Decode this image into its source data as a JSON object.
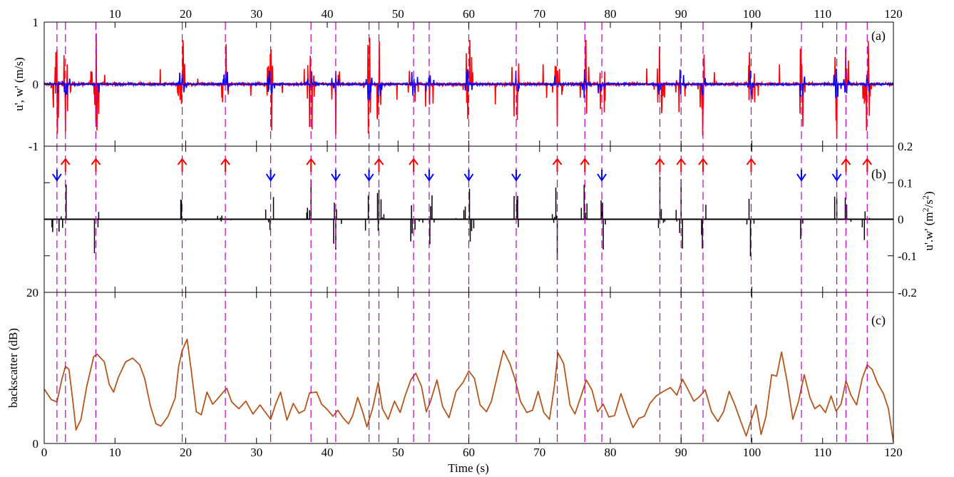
{
  "chart_data": {
    "type": "line",
    "panels": [
      {
        "id": "a",
        "panel_label": "(a)",
        "ylabel": "u', w' (m/s)",
        "ylim": [
          -1,
          1
        ],
        "yticks": [
          -1,
          0,
          1
        ],
        "ytick_labels": [
          "-1",
          "0",
          "1"
        ],
        "series": [
          {
            "color": "#ff0000",
            "key": "u"
          },
          {
            "color": "#0000ff",
            "key": "w"
          }
        ]
      },
      {
        "id": "b",
        "panel_label": "(b)",
        "ylabel": "u'.w' (m²/s²)",
        "ylabel_parts": {
          "pre": "u'.w' (m",
          "sup1": "2",
          "mid": "/s",
          "sup2": "2",
          "post": ")"
        },
        "ylim": [
          -0.2,
          0.2
        ],
        "yticks": [
          -0.2,
          -0.1,
          0,
          0.1,
          0.2
        ],
        "ytick_labels": [
          "-0.2",
          "-0.1",
          "0",
          "0.1",
          "0.2"
        ],
        "series": [
          {
            "color": "#000000",
            "key": "uw"
          }
        ]
      },
      {
        "id": "c",
        "panel_label": "(c)",
        "ylabel": "backscatter (dB)",
        "ylim": [
          0,
          20
        ],
        "yticks": [
          0,
          20
        ],
        "ytick_labels": [
          "0",
          "20"
        ],
        "series": [
          {
            "color": "#b5561b",
            "key": "backscatter"
          }
        ]
      }
    ],
    "xlabel": "Time (s)",
    "xlim": [
      0,
      120
    ],
    "xticks": [
      10,
      20,
      30,
      40,
      50,
      60,
      70,
      80,
      90,
      100,
      110,
      120
    ],
    "xtick_labels_top": [
      "10",
      "20",
      "30",
      "40",
      "50",
      "60",
      "70",
      "80",
      "90",
      "100",
      "110",
      "120"
    ],
    "xtick_labels_bottom": [
      "0",
      "10",
      "20",
      "30",
      "40",
      "50",
      "60",
      "70",
      "80",
      "90",
      "100",
      "110",
      "120"
    ],
    "event_lines": [
      1.8,
      3.0,
      7.3,
      19.5,
      25.6,
      32.0,
      37.7,
      41.2,
      45.9,
      47.3,
      52.2,
      54.4,
      60.0,
      66.7,
      72.5,
      76.4,
      78.8,
      87.0,
      90.0,
      93.1,
      99.9,
      107.0,
      112.0,
      113.3,
      116.3
    ],
    "arrows_up": [
      3.0,
      7.3,
      19.5,
      25.6,
      37.7,
      47.3,
      52.2,
      72.5,
      76.4,
      87.0,
      90.0,
      93.1,
      99.9,
      113.3,
      116.3
    ],
    "arrows_down": [
      1.8,
      32.0,
      41.2,
      45.9,
      54.4,
      60.0,
      66.7,
      78.8,
      107.0,
      112.0
    ],
    "backscatter_db": [
      [
        0.0,
        7.2
      ],
      [
        1.0,
        5.8
      ],
      [
        1.8,
        5.5
      ],
      [
        2.5,
        8.5
      ],
      [
        3.0,
        10.2
      ],
      [
        3.5,
        9.8
      ],
      [
        4.0,
        6.0
      ],
      [
        4.5,
        1.8
      ],
      [
        5.2,
        3.2
      ],
      [
        6.0,
        7.5
      ],
      [
        7.0,
        11.5
      ],
      [
        7.5,
        11.8
      ],
      [
        8.5,
        10.8
      ],
      [
        9.2,
        7.8
      ],
      [
        9.8,
        6.8
      ],
      [
        10.5,
        8.8
      ],
      [
        11.5,
        10.8
      ],
      [
        12.5,
        11.3
      ],
      [
        13.5,
        10.4
      ],
      [
        14.2,
        8.6
      ],
      [
        15.0,
        5.0
      ],
      [
        15.8,
        2.6
      ],
      [
        16.5,
        2.3
      ],
      [
        17.5,
        3.6
      ],
      [
        18.5,
        6.0
      ],
      [
        19.0,
        10.2
      ],
      [
        19.5,
        12.3
      ],
      [
        20.2,
        13.8
      ],
      [
        20.8,
        9.5
      ],
      [
        21.5,
        4.2
      ],
      [
        22.2,
        3.8
      ],
      [
        23.0,
        6.8
      ],
      [
        23.8,
        5.2
      ],
      [
        24.5,
        5.9
      ],
      [
        25.3,
        6.8
      ],
      [
        25.8,
        7.3
      ],
      [
        26.5,
        5.5
      ],
      [
        27.5,
        4.6
      ],
      [
        28.5,
        5.6
      ],
      [
        29.5,
        3.9
      ],
      [
        30.5,
        5.1
      ],
      [
        31.2,
        4.2
      ],
      [
        32.0,
        3.2
      ],
      [
        32.7,
        5.2
      ],
      [
        33.4,
        6.8
      ],
      [
        34.3,
        3.1
      ],
      [
        35.2,
        5.3
      ],
      [
        36.0,
        4.0
      ],
      [
        36.8,
        4.4
      ],
      [
        37.5,
        6.7
      ],
      [
        38.5,
        6.8
      ],
      [
        39.2,
        5.2
      ],
      [
        40.0,
        4.5
      ],
      [
        40.8,
        3.6
      ],
      [
        41.5,
        4.4
      ],
      [
        42.3,
        3.3
      ],
      [
        43.0,
        2.6
      ],
      [
        43.6,
        3.7
      ],
      [
        44.3,
        6.1
      ],
      [
        45.0,
        4.2
      ],
      [
        45.6,
        2.2
      ],
      [
        46.4,
        4.6
      ],
      [
        47.2,
        8.1
      ],
      [
        47.8,
        4.6
      ],
      [
        48.6,
        3.2
      ],
      [
        49.5,
        5.6
      ],
      [
        50.3,
        4.1
      ],
      [
        51.0,
        6.3
      ],
      [
        51.8,
        8.4
      ],
      [
        52.5,
        9.3
      ],
      [
        53.3,
        7.6
      ],
      [
        54.0,
        4.2
      ],
      [
        54.6,
        5.6
      ],
      [
        55.5,
        8.4
      ],
      [
        56.3,
        4.9
      ],
      [
        57.2,
        3.4
      ],
      [
        58.2,
        6.9
      ],
      [
        59.2,
        8.1
      ],
      [
        60.0,
        9.6
      ],
      [
        60.8,
        8.6
      ],
      [
        61.6,
        5.1
      ],
      [
        62.5,
        4.2
      ],
      [
        63.2,
        5.6
      ],
      [
        64.2,
        9.6
      ],
      [
        64.9,
        12.3
      ],
      [
        65.8,
        10.6
      ],
      [
        66.5,
        8.6
      ],
      [
        67.3,
        5.6
      ],
      [
        68.2,
        4.1
      ],
      [
        69.0,
        4.4
      ],
      [
        69.8,
        6.9
      ],
      [
        70.6,
        4.1
      ],
      [
        71.4,
        3.2
      ],
      [
        72.1,
        7.6
      ],
      [
        72.6,
        12.0
      ],
      [
        73.4,
        10.6
      ],
      [
        74.3,
        5.1
      ],
      [
        75.0,
        3.9
      ],
      [
        75.8,
        6.1
      ],
      [
        76.6,
        8.4
      ],
      [
        77.4,
        7.1
      ],
      [
        78.2,
        4.2
      ],
      [
        79.0,
        5.2
      ],
      [
        79.8,
        3.5
      ],
      [
        80.6,
        3.7
      ],
      [
        81.5,
        6.6
      ],
      [
        82.4,
        4.1
      ],
      [
        83.2,
        2.1
      ],
      [
        84.0,
        3.3
      ],
      [
        84.8,
        3.6
      ],
      [
        85.6,
        5.3
      ],
      [
        86.5,
        6.3
      ],
      [
        87.5,
        6.9
      ],
      [
        88.5,
        7.4
      ],
      [
        89.4,
        6.4
      ],
      [
        90.2,
        8.5
      ],
      [
        91.0,
        7.1
      ],
      [
        91.8,
        5.6
      ],
      [
        92.6,
        6.2
      ],
      [
        93.4,
        7.1
      ],
      [
        94.3,
        4.2
      ],
      [
        95.2,
        2.9
      ],
      [
        96.0,
        4.2
      ],
      [
        96.8,
        6.9
      ],
      [
        97.6,
        5.1
      ],
      [
        98.4,
        3.0
      ],
      [
        99.2,
        1.0
      ],
      [
        99.9,
        3.1
      ],
      [
        100.6,
        5.1
      ],
      [
        101.3,
        1.2
      ],
      [
        102.0,
        3.6
      ],
      [
        102.8,
        9.1
      ],
      [
        103.5,
        8.9
      ],
      [
        104.2,
        12.1
      ],
      [
        105.0,
        8.1
      ],
      [
        105.8,
        3.2
      ],
      [
        106.6,
        5.6
      ],
      [
        107.4,
        9.1
      ],
      [
        108.2,
        6.1
      ],
      [
        108.9,
        4.6
      ],
      [
        109.6,
        5.1
      ],
      [
        110.4,
        4.1
      ],
      [
        111.2,
        6.3
      ],
      [
        111.9,
        4.3
      ],
      [
        112.6,
        5.2
      ],
      [
        113.3,
        8.3
      ],
      [
        114.0,
        6.4
      ],
      [
        114.8,
        5.1
      ],
      [
        115.6,
        8.6
      ],
      [
        116.3,
        10.4
      ],
      [
        117.0,
        9.8
      ],
      [
        117.8,
        7.9
      ],
      [
        118.6,
        6.6
      ],
      [
        119.3,
        4.6
      ],
      [
        120.0,
        0.2
      ]
    ]
  }
}
